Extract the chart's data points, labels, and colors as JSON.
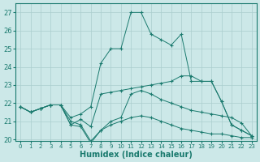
{
  "bg_color": "#cce8e8",
  "line_color": "#1a7a6e",
  "grid_color": "#aacece",
  "xlabel": "Humidex (Indice chaleur)",
  "ylim": [
    19.9,
    27.5
  ],
  "xlim": [
    -0.5,
    23.5
  ],
  "yticks": [
    20,
    21,
    22,
    23,
    24,
    25,
    26,
    27
  ],
  "xticks": [
    0,
    1,
    2,
    3,
    4,
    5,
    6,
    7,
    8,
    9,
    10,
    11,
    12,
    13,
    14,
    15,
    16,
    17,
    18,
    19,
    20,
    21,
    22,
    23
  ],
  "s1": [
    21.8,
    21.5,
    21.7,
    21.9,
    21.9,
    20.8,
    21.1,
    20.7,
    22.5,
    22.6,
    22.7,
    22.8,
    22.9,
    23.0,
    23.1,
    23.2,
    23.5,
    23.5,
    23.2,
    23.2,
    22.1,
    20.8,
    20.5,
    20.2
  ],
  "s2": [
    21.8,
    21.5,
    21.7,
    21.9,
    21.9,
    21.2,
    21.4,
    21.8,
    24.2,
    25.0,
    25.0,
    27.0,
    27.0,
    25.8,
    25.5,
    25.2,
    25.8,
    23.2,
    23.2,
    23.2,
    22.1,
    20.8,
    20.5,
    20.2
  ],
  "s3": [
    21.8,
    21.5,
    21.7,
    21.9,
    21.9,
    20.8,
    20.7,
    19.8,
    20.5,
    21.0,
    21.2,
    22.5,
    22.7,
    22.5,
    22.2,
    22.0,
    21.8,
    21.6,
    21.5,
    21.4,
    21.3,
    21.2,
    20.9,
    20.2
  ],
  "s4": [
    21.8,
    21.5,
    21.7,
    21.9,
    21.9,
    21.0,
    20.8,
    19.9,
    20.5,
    20.8,
    21.0,
    21.2,
    21.3,
    21.2,
    21.0,
    20.8,
    20.6,
    20.5,
    20.4,
    20.3,
    20.3,
    20.2,
    20.1,
    20.1
  ]
}
